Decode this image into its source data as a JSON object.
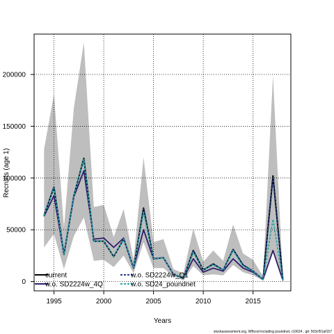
{
  "chart_data": {
    "type": "line",
    "xlabel": "Years",
    "ylabel": "Recruits (age 1)",
    "xlim": [
      1993,
      2018.8
    ],
    "ylim": [
      -9000,
      239000
    ],
    "x_ticks": [
      1995,
      2000,
      2005,
      2010,
      2015
    ],
    "y_ticks": [
      0,
      50000,
      100000,
      150000,
      200000
    ],
    "grid": "dotted",
    "legend_position": "bottom-left",
    "x": [
      1994,
      1995,
      1996,
      1997,
      1998,
      1999,
      2000,
      2001,
      2002,
      2003,
      2004,
      2005,
      2006,
      2007,
      2008,
      2009,
      2010,
      2011,
      2012,
      2013,
      2014,
      2015,
      2016,
      2017,
      2018
    ],
    "band": {
      "color": "#bebebe",
      "lower": [
        33000,
        46000,
        12000,
        44000,
        62000,
        20000,
        21000,
        14000,
        25000,
        8000,
        38000,
        13000,
        13000,
        5000,
        1000,
        15000,
        6000,
        7000,
        6000,
        16000,
        9000,
        6000,
        1000,
        30000,
        0
      ],
      "upper": [
        128000,
        181000,
        52000,
        168000,
        231000,
        72000,
        74000,
        43000,
        70000,
        21000,
        120000,
        38000,
        41000,
        12000,
        8000,
        51000,
        19000,
        30000,
        20000,
        55000,
        27000,
        21000,
        5000,
        199000,
        2000
      ]
    },
    "series": [
      {
        "name": "current",
        "color": "#000000",
        "dash": "solid",
        "values": [
          64000,
          91000,
          26000,
          83000,
          119000,
          39000,
          39000,
          24000,
          41000,
          13000,
          71000,
          22000,
          23000,
          7000,
          3000,
          30000,
          11000,
          17000,
          11000,
          31000,
          16000,
          10000,
          2000,
          102000,
          1000
        ]
      },
      {
        "name": "w.o. SD2224w_4Q",
        "color": "#2f1b6b",
        "dash": "solid",
        "values": [
          63000,
          83000,
          26000,
          82000,
          107000,
          41000,
          42000,
          33000,
          42000,
          13000,
          50000,
          22000,
          23000,
          7000,
          3000,
          22000,
          9000,
          13000,
          10000,
          22000,
          13000,
          9000,
          2000,
          30000,
          1000
        ]
      },
      {
        "name": "w.o. SD2224w_Q1",
        "color": "#1f3d8c",
        "dash": "dashed",
        "values": [
          64000,
          92000,
          26000,
          83000,
          118000,
          39000,
          39000,
          24000,
          41000,
          13000,
          70000,
          22000,
          23000,
          7000,
          3000,
          30000,
          11000,
          17000,
          11000,
          31000,
          16000,
          10000,
          2000,
          100000,
          1000
        ]
      },
      {
        "name": "w.o. SD24_poundnet",
        "color": "#21a7a1",
        "dash": "dashed",
        "values": [
          64000,
          90000,
          26000,
          83000,
          118000,
          39000,
          39000,
          24000,
          41000,
          13000,
          67000,
          22000,
          23000,
          7000,
          3000,
          28000,
          11000,
          16000,
          11000,
          30000,
          15000,
          10000,
          2000,
          60000,
          1000
        ]
      }
    ]
  },
  "footnote": "stockassessment.org, WBcod including poundnet, r10624 , git: 503cf91af157"
}
